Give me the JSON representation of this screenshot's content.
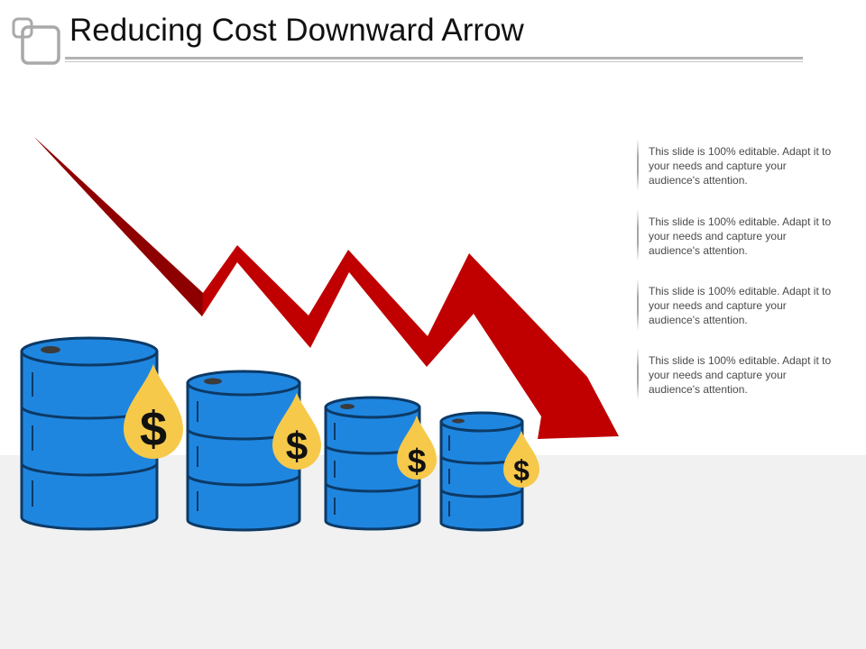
{
  "slide": {
    "title": "Reducing Cost Downward Arrow"
  },
  "notes": [
    {
      "text": "This slide is 100% editable. Adapt it to your needs and capture your audience's attention."
    },
    {
      "text": "This slide is 100% editable. Adapt it to your needs and capture your audience's attention."
    },
    {
      "text": "This slide is 100% editable. Adapt it to your needs and capture your audience's attention."
    },
    {
      "text": "This slide is 100% editable. Adapt it to your needs and capture your audience's attention."
    }
  ],
  "drops": [
    {
      "symbol": "$"
    },
    {
      "symbol": "$"
    },
    {
      "symbol": "$"
    },
    {
      "symbol": "$"
    }
  ],
  "colors": {
    "arrow": "#c00000",
    "barrel": "#1f86e0",
    "barrel_outline": "#0c3a66",
    "drop": "#f6c94a"
  }
}
